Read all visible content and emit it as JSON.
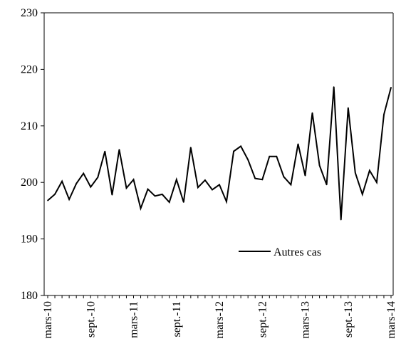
{
  "chart_data": {
    "type": "line",
    "title": "",
    "xlabel": "",
    "ylabel": "",
    "ylim": [
      180,
      230
    ],
    "yticks": [
      180,
      190,
      200,
      210,
      220,
      230
    ],
    "grid": false,
    "legend_position": "bottom-right",
    "x_tick_labels": [
      "mars-10",
      "sept.-10",
      "mars-11",
      "sept.-11",
      "mars-12",
      "sept.-12",
      "mars-13",
      "sept.-13",
      "mars-14"
    ],
    "x_tick_every": 6,
    "series": [
      {
        "name": "Autres cas",
        "color": "#000000",
        "x": [
          "mars-10",
          "avr.-10",
          "mai-10",
          "juin-10",
          "juil.-10",
          "août-10",
          "sept.-10",
          "oct.-10",
          "nov.-10",
          "déc.-10",
          "janv.-11",
          "févr.-11",
          "mars-11",
          "avr.-11",
          "mai-11",
          "juin-11",
          "juil.-11",
          "août-11",
          "sept.-11",
          "oct.-11",
          "nov.-11",
          "déc.-11",
          "janv.-12",
          "févr.-12",
          "mars-12",
          "avr.-12",
          "mai-12",
          "juin-12",
          "juil.-12",
          "août-12",
          "sept.-12",
          "oct.-12",
          "nov.-12",
          "déc.-12",
          "janv.-13",
          "févr.-13",
          "mars-13",
          "avr.-13",
          "mai-13",
          "juin-13",
          "juil.-13",
          "août-13",
          "sept.-13",
          "oct.-13",
          "nov.-13",
          "déc.-13",
          "janv.-14",
          "févr.-14",
          "mars-14"
        ],
        "values": [
          196.8,
          197.9,
          200.2,
          197.0,
          199.8,
          201.6,
          199.2,
          200.9,
          205.5,
          197.8,
          205.8,
          199.0,
          200.5,
          195.4,
          198.8,
          197.6,
          197.9,
          196.5,
          200.5,
          196.5,
          206.2,
          199.1,
          200.4,
          198.7,
          199.6,
          196.6,
          205.5,
          206.4,
          204.0,
          200.7,
          200.5,
          204.6,
          204.6,
          201.0,
          199.6,
          206.8,
          201.2,
          212.3,
          203.0,
          199.6,
          216.9,
          193.4,
          213.2,
          201.7,
          197.9,
          202.1,
          200.0,
          212.0,
          216.8
        ]
      }
    ]
  }
}
